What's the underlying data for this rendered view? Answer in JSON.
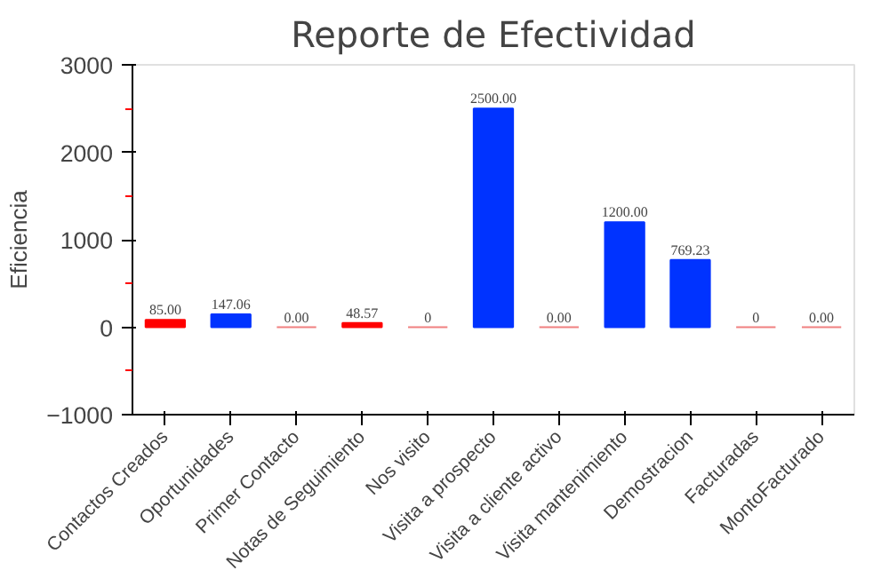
{
  "chart_data": {
    "type": "bar",
    "title": "Reporte de Efectividad",
    "ylabel": "Eficiencia",
    "categories": [
      "Contactos Creados",
      "Oportunidades",
      "Primer Contacto",
      "Notas de Seguimiento",
      "Nos visito",
      "Visita a prospecto",
      "Visita a cliente activo",
      "Visita mantenimiento",
      "Demostracion",
      "Facturadas",
      "MontoFacturado"
    ],
    "values": [
      85,
      147.06,
      0,
      48.57,
      0,
      2500,
      0,
      1200,
      769.23,
      0,
      0
    ],
    "value_labels": [
      "85.00",
      "147.06",
      "0.00",
      "48.57",
      "0",
      "2500.00",
      "0.00",
      "1200.00",
      "769.23",
      "0",
      "0.00"
    ],
    "colors": [
      "#ff0000",
      "#0033ff",
      "#f08080",
      "#ff0000",
      "#f08080",
      "#0033ff",
      "#f08080",
      "#0033ff",
      "#0033ff",
      "#f08080",
      "#f08080"
    ],
    "ylim": [
      -1000,
      3000
    ],
    "yticks": [
      -1000,
      0,
      1000,
      2000,
      3000
    ],
    "grid": false
  }
}
